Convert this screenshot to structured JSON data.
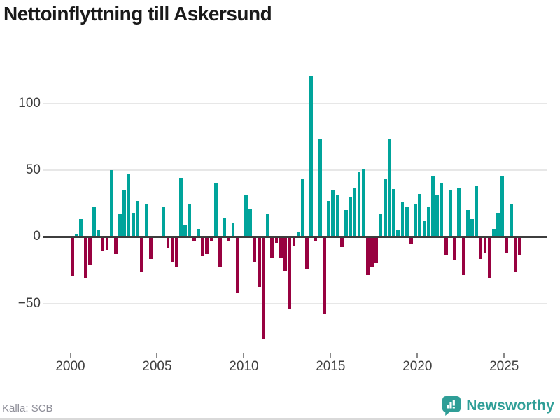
{
  "title": "Nettoinflyttning till Askersund",
  "source": "Källa: SCB",
  "brand": {
    "name": "Newsworthy"
  },
  "colors": {
    "positive_bar": "#00a49b",
    "negative_bar": "#980140",
    "zero_line": "#3d3d3d",
    "gridline": "#e7e7e7",
    "brand_teal": "#2f9e97",
    "title_text": "#1a1a1a",
    "axis_text": "#414141",
    "source_text": "#8f8f99"
  },
  "chart_data": {
    "type": "bar",
    "title": "Nettoinflyttning till Askersund",
    "frequency": "quarterly",
    "start": "2000-Q1",
    "end": "2025-Q4",
    "grid": "horizontal",
    "legend": "none",
    "x_tick_labels": [
      "2000",
      "2005",
      "2010",
      "2015",
      "2020",
      "2025"
    ],
    "x_tick_years": [
      2000,
      2005,
      2010,
      2015,
      2020,
      2025
    ],
    "y_tick_values": [
      100,
      50,
      0,
      -50
    ],
    "y_tick_labels": [
      "100",
      "50",
      "0",
      "−50"
    ],
    "ylim": [
      -85,
      130
    ],
    "series": [
      {
        "name": "Nettoinflyttning",
        "values": [
          -29,
          2,
          13,
          -30,
          -20,
          22,
          5,
          -10,
          -9,
          50,
          -12,
          17,
          35,
          47,
          18,
          27,
          -26,
          25,
          -16,
          0,
          0,
          22,
          -8,
          -18,
          -22,
          44,
          9,
          25,
          -3,
          6,
          -14,
          -12,
          -2,
          40,
          -22,
          14,
          -2,
          10,
          -41,
          0,
          31,
          21,
          -18,
          -37,
          -76,
          17,
          -15,
          -4,
          -15,
          -25,
          -53,
          -6,
          4,
          43,
          -23,
          120,
          -3,
          73,
          -57,
          27,
          35,
          31,
          -7,
          20,
          30,
          37,
          49,
          51,
          -28,
          -22,
          -19,
          17,
          43,
          73,
          36,
          5,
          26,
          22,
          -5,
          25,
          32,
          12,
          22,
          45,
          31,
          40,
          -13,
          35,
          -17,
          37,
          -28,
          20,
          13,
          38,
          -16,
          -11,
          -30,
          6,
          18,
          46,
          -11,
          25,
          -26,
          -13
        ]
      }
    ]
  }
}
